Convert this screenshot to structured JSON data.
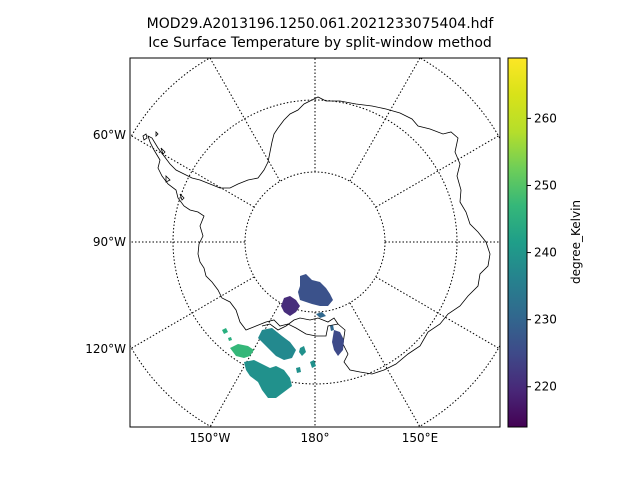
{
  "figure": {
    "title_line1": "MOD29.A2013196.1250.061.2021233075404.hdf",
    "title_line2": "Ice Surface Temperature by split-window method"
  },
  "map": {
    "projection": "south polar stereographic",
    "left_labels": [
      "60°W",
      "90°W",
      "120°W"
    ],
    "bottom_labels": [
      "150°W",
      "180°",
      "150°E"
    ],
    "graticule_style": "dotted",
    "coastline_color": "#000000"
  },
  "colorbar": {
    "label": "degree_Kelvin",
    "colormap": "viridis",
    "range": [
      214,
      269
    ],
    "ticks": [
      220,
      230,
      240,
      250,
      260
    ]
  },
  "data_patches": [
    {
      "id": "ross-north",
      "value_K": 226
    },
    {
      "id": "ross-small",
      "value_K": 224
    },
    {
      "id": "victoria-land",
      "value_K": 228
    },
    {
      "id": "west-green",
      "value_K": 252
    },
    {
      "id": "west-teal-main",
      "value_K": 244
    },
    {
      "id": "west-teal-lower",
      "value_K": 243
    }
  ]
}
